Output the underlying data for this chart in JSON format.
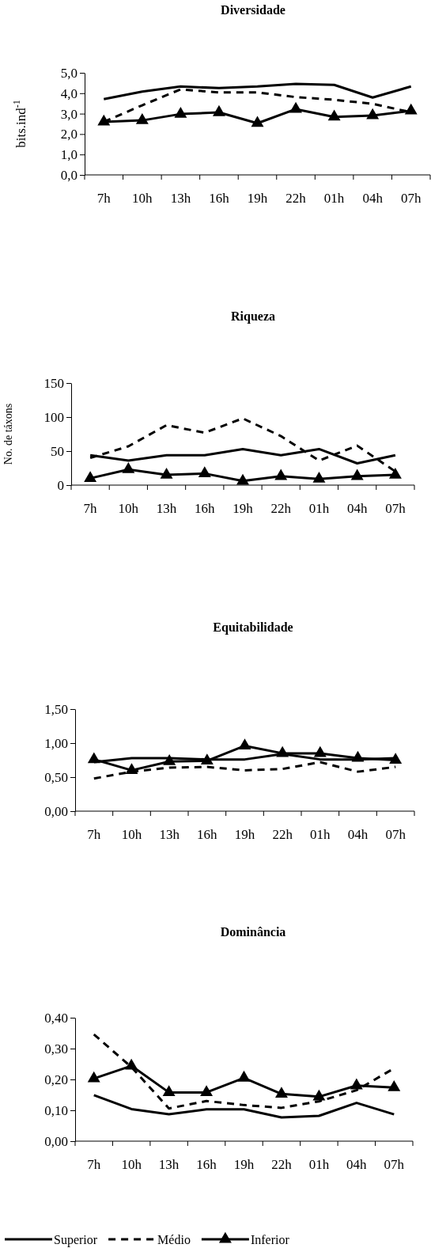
{
  "chart_data": [
    {
      "type": "line",
      "title": "Diversidade",
      "ylabel": "bits.ind$^{-1}$",
      "categories": [
        "7h",
        "10h",
        "13h",
        "16h",
        "19h",
        "22h",
        "01h",
        "04h",
        "07h"
      ],
      "ylim": [
        0,
        5
      ],
      "yticks": [
        {
          "value": 0,
          "label": "0,0"
        },
        {
          "value": 1,
          "label": "1,0"
        },
        {
          "value": 2,
          "label": "2,0"
        },
        {
          "value": 3,
          "label": "3,0"
        },
        {
          "value": 4,
          "label": "4,0"
        },
        {
          "value": 5,
          "label": "5,0"
        }
      ],
      "grid": false,
      "legend": false,
      "series": [
        {
          "color": "#000000",
          "line_style": "solid",
          "marker": "none",
          "values": [
            3.71,
            4.08,
            4.33,
            4.25,
            4.33,
            4.46,
            4.41,
            3.79,
            4.33
          ]
        },
        {
          "color": "#000000",
          "line_style": "dashed",
          "marker": "none",
          "values": [
            2.6,
            3.41,
            4.19,
            4.04,
            4.04,
            3.81,
            3.68,
            3.48,
            3.07
          ]
        },
        {
          "color": "#000000",
          "line_style": "solid",
          "marker": "triangle",
          "values": [
            2.6,
            2.67,
            2.98,
            3.06,
            2.53,
            3.22,
            2.84,
            2.91,
            3.14
          ]
        }
      ]
    },
    {
      "type": "line",
      "title": "Riqueza",
      "ylabel": "No. de táxons",
      "categories": [
        "7h",
        "10h",
        "13h",
        "16h",
        "19h",
        "22h",
        "01h",
        "04h",
        "07h"
      ],
      "ylim": [
        0,
        150
      ],
      "yticks": [
        0,
        50,
        100,
        150
      ],
      "grid": false,
      "legend": false,
      "series": [
        {
          "color": "#000000",
          "line_style": "solid",
          "marker": "none",
          "values": [
            44,
            36,
            44,
            44,
            53,
            44,
            53,
            32,
            44
          ]
        },
        {
          "color": "#000000",
          "line_style": "dashed",
          "marker": "none",
          "values": [
            40,
            57,
            88,
            77,
            98,
            72,
            36,
            58,
            20
          ]
        },
        {
          "color": "#000000",
          "line_style": "solid",
          "marker": "triangle",
          "values": [
            10,
            23,
            15,
            17,
            6,
            13,
            9,
            13,
            15
          ]
        }
      ]
    },
    {
      "type": "line",
      "title": "Equitabilidade",
      "categories": [
        "7h",
        "10h",
        "13h",
        "16h",
        "19h",
        "22h",
        "01h",
        "04h",
        "07h"
      ],
      "ylim": [
        0,
        1.5
      ],
      "yticks": [
        {
          "value": 0,
          "label": "0,00"
        },
        {
          "value": 0.5,
          "label": "0,50"
        },
        {
          "value": 1,
          "label": "1,00"
        },
        {
          "value": 1.5,
          "label": "1,50"
        }
      ],
      "grid": false,
      "legend": false,
      "series": [
        {
          "color": "#000000",
          "line_style": "solid",
          "marker": "none",
          "values": [
            0.72,
            0.78,
            0.78,
            0.76,
            0.76,
            0.84,
            0.76,
            0.76,
            0.78
          ]
        },
        {
          "color": "#000000",
          "line_style": "dashed",
          "marker": "none",
          "values": [
            0.48,
            0.58,
            0.64,
            0.65,
            0.6,
            0.62,
            0.72,
            0.58,
            0.65
          ]
        },
        {
          "color": "#000000",
          "line_style": "solid",
          "marker": "triangle",
          "values": [
            0.76,
            0.6,
            0.73,
            0.74,
            0.96,
            0.85,
            0.85,
            0.78,
            0.75
          ]
        }
      ]
    },
    {
      "type": "line",
      "title": "Dominância",
      "categories": [
        "7h",
        "10h",
        "13h",
        "16h",
        "19h",
        "22h",
        "01h",
        "04h",
        "07h"
      ],
      "ylim": [
        0,
        0.4
      ],
      "yticks": [
        {
          "value": 0,
          "label": "0,00"
        },
        {
          "value": 0.1,
          "label": "0,10"
        },
        {
          "value": 0.2,
          "label": "0,20"
        },
        {
          "value": 0.3,
          "label": "0,30"
        },
        {
          "value": 0.4,
          "label": "0,40"
        }
      ],
      "grid": false,
      "legend": "bottom",
      "series": [
        {
          "name": "Superior",
          "color": "#000000",
          "line_style": "solid",
          "marker": "none",
          "values": [
            0.149,
            0.104,
            0.087,
            0.103,
            0.103,
            0.077,
            0.082,
            0.124,
            0.087
          ]
        },
        {
          "name": "Médio",
          "color": "#000000",
          "line_style": "dashed",
          "marker": "none",
          "values": [
            0.346,
            0.24,
            0.106,
            0.13,
            0.117,
            0.108,
            0.129,
            0.165,
            0.236
          ]
        },
        {
          "name": "Inferior",
          "color": "#000000",
          "line_style": "solid",
          "marker": "triangle",
          "values": [
            0.203,
            0.244,
            0.158,
            0.158,
            0.205,
            0.153,
            0.144,
            0.18,
            0.174
          ]
        }
      ]
    }
  ]
}
